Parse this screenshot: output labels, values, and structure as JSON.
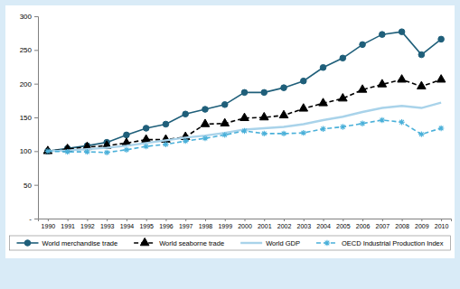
{
  "chart_data": {
    "type": "line",
    "categories": [
      "1990",
      "1991",
      "1992",
      "1993",
      "1994",
      "1995",
      "1996",
      "1997",
      "1998",
      "1999",
      "2000",
      "2001",
      "2002",
      "2003",
      "2004",
      "2005",
      "2006",
      "2007",
      "2008",
      "2009",
      "2010"
    ],
    "ylim": [
      0,
      300
    ],
    "yticks": [
      {
        "value": 0,
        "label": "-"
      },
      50,
      100,
      150,
      200,
      250,
      300
    ],
    "grid": false,
    "legend": "bottom",
    "series": [
      {
        "name": "World merchandise trade",
        "color": "#1f5f7a",
        "marker": "circle",
        "line_style": "solid",
        "values": [
          100,
          104,
          108,
          113,
          124,
          134,
          140,
          155,
          162,
          169,
          187,
          187,
          194,
          204,
          224,
          238,
          258,
          273,
          277,
          243,
          266
        ]
      },
      {
        "name": "World seaborne trade",
        "color": "#000000",
        "marker": "triangle",
        "line_style": "dashed",
        "values": [
          100,
          103,
          106,
          108,
          112,
          117,
          117,
          121,
          140,
          141,
          149,
          150,
          153,
          163,
          171,
          178,
          191,
          199,
          206,
          196,
          206
        ]
      },
      {
        "name": "World GDP",
        "color": "#a9d3ea",
        "marker": "none",
        "line_style": "solid",
        "values": [
          100,
          101,
          103,
          105,
          108,
          112,
          116,
          120,
          123,
          127,
          132,
          134,
          136,
          140,
          146,
          151,
          158,
          164,
          167,
          164,
          172
        ]
      },
      {
        "name": "OECD Industrial Production Index",
        "color": "#4ab0d9",
        "marker": "asterisk",
        "line_style": "dashed",
        "values": [
          100,
          99,
          99,
          98,
          102,
          107,
          110,
          115,
          119,
          124,
          130,
          126,
          126,
          127,
          133,
          136,
          141,
          146,
          143,
          125,
          134
        ]
      }
    ]
  }
}
